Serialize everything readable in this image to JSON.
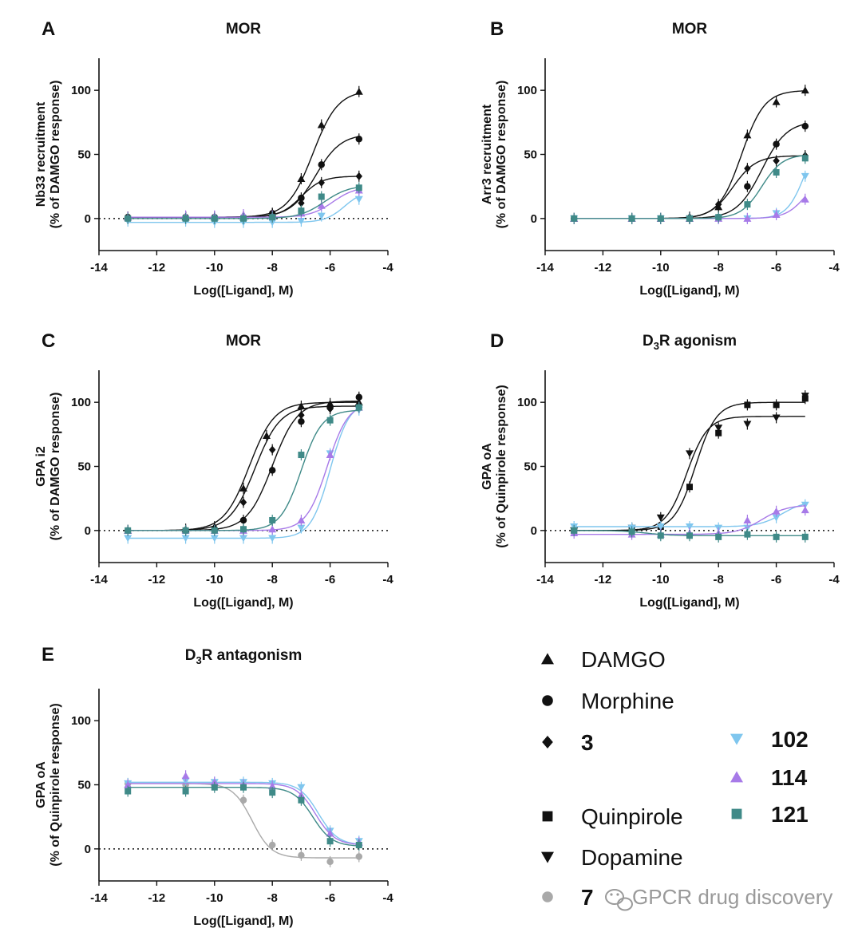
{
  "colors": {
    "black": "#111111",
    "light_blue": "#7fc6ee",
    "purple": "#a77ae8",
    "teal": "#3f8a88",
    "grey": "#a9a9a9"
  },
  "chart_data": [
    {
      "id": "A",
      "letter": "A",
      "title": "MOR",
      "type": "scatter",
      "xlabel": "Log([Ligand], M)",
      "ylabel_line1": "Nb33 recruitment",
      "ylabel_line2": "(% of DAMGO response)",
      "xlim": [
        -14,
        -4
      ],
      "ylim": [
        -25,
        125
      ],
      "xticks": [
        -14,
        -12,
        -10,
        -8,
        -6,
        -4
      ],
      "yticks": [
        0,
        50,
        100
      ],
      "zero_line": true,
      "series": [
        {
          "name": "DAMGO",
          "marker": "triangle-up",
          "color": "#111111",
          "x": [
            -13,
            -11,
            -10,
            -9,
            -8,
            -7,
            -6.3,
            -5
          ],
          "y": [
            1,
            1,
            1,
            1,
            4,
            31,
            73,
            99
          ],
          "fit": {
            "bottom": 1,
            "top": 100,
            "ec50": -6.6,
            "hill": 1
          }
        },
        {
          "name": "Morphine",
          "marker": "circle",
          "color": "#111111",
          "x": [
            -13,
            -11,
            -10,
            -9,
            -8,
            -7,
            -6.3,
            -5
          ],
          "y": [
            1,
            1,
            1,
            1,
            4,
            16,
            42,
            62
          ],
          "fit": {
            "bottom": 1,
            "top": 66,
            "ec50": -6.5,
            "hill": 1
          }
        },
        {
          "name": "3",
          "marker": "diamond",
          "color": "#111111",
          "x": [
            -13,
            -11,
            -10,
            -9,
            -8,
            -7,
            -6.3,
            -5
          ],
          "y": [
            1,
            1,
            1,
            1,
            3,
            12,
            28,
            33
          ],
          "fit": {
            "bottom": 1,
            "top": 33,
            "ec50": -7.0,
            "hill": 1.2
          }
        },
        {
          "name": "102",
          "marker": "triangle-down",
          "color": "#7fc6ee",
          "x": [
            -13,
            -11,
            -10,
            -9,
            -8,
            -7,
            -6.3,
            -5
          ],
          "y": [
            -2,
            -2,
            -3,
            -3,
            -3,
            -2,
            2,
            15
          ],
          "fit": {
            "bottom": -3,
            "top": 22,
            "ec50": -5.5,
            "hill": 1.3
          }
        },
        {
          "name": "114",
          "marker": "triangle-up",
          "color": "#a77ae8",
          "x": [
            -13,
            -11,
            -10,
            -9,
            -8,
            -7,
            -6.3,
            -5
          ],
          "y": [
            1,
            2,
            2,
            3,
            2,
            4,
            10,
            22
          ],
          "fit": {
            "bottom": 1,
            "top": 25,
            "ec50": -5.9,
            "hill": 1.1
          }
        },
        {
          "name": "121",
          "marker": "square",
          "color": "#3f8a88",
          "x": [
            -13,
            -11,
            -10,
            -9,
            -8,
            -7,
            -6.3,
            -5
          ],
          "y": [
            0,
            0,
            0,
            0,
            1,
            6,
            17,
            24
          ],
          "fit": {
            "bottom": 0,
            "top": 26,
            "ec50": -6.2,
            "hill": 1.0
          }
        }
      ]
    },
    {
      "id": "B",
      "letter": "B",
      "title": "MOR",
      "type": "scatter",
      "xlabel": "Log([Ligand], M)",
      "ylabel_line1": "Arr3 recruitment",
      "ylabel_line2": "(% of DAMGO response)",
      "xlim": [
        -14,
        -4
      ],
      "ylim": [
        -25,
        125
      ],
      "xticks": [
        -14,
        -12,
        -10,
        -8,
        -6,
        -4
      ],
      "yticks": [
        0,
        50,
        100
      ],
      "zero_line": false,
      "series": [
        {
          "name": "DAMGO",
          "marker": "triangle-up",
          "color": "#111111",
          "x": [
            -13,
            -11,
            -10,
            -9,
            -8,
            -7,
            -6,
            -5
          ],
          "y": [
            0,
            0,
            0,
            0,
            9,
            65,
            91,
            100
          ],
          "fit": {
            "bottom": 0,
            "top": 100,
            "ec50": -7.2,
            "hill": 1.1
          }
        },
        {
          "name": "Morphine",
          "marker": "circle",
          "color": "#111111",
          "x": [
            -13,
            -11,
            -10,
            -9,
            -8,
            -7,
            -6,
            -5
          ],
          "y": [
            0,
            0,
            0,
            0,
            1,
            25,
            58,
            72
          ],
          "fit": {
            "bottom": 0,
            "top": 76,
            "ec50": -6.5,
            "hill": 1.0
          }
        },
        {
          "name": "3",
          "marker": "diamond",
          "color": "#111111",
          "x": [
            -13,
            -11,
            -10,
            -9,
            -8,
            -7,
            -6,
            -5
          ],
          "y": [
            0,
            0,
            0,
            1,
            11,
            39,
            45,
            49
          ],
          "fit": {
            "bottom": 0,
            "top": 49,
            "ec50": -7.5,
            "hill": 1.1
          }
        },
        {
          "name": "102",
          "marker": "triangle-down",
          "color": "#7fc6ee",
          "x": [
            -13,
            -11,
            -10,
            -9,
            -8,
            -7,
            -6,
            -5
          ],
          "y": [
            0,
            0,
            0,
            0,
            0,
            0,
            4,
            33
          ],
          "fit": {
            "bottom": 0,
            "top": 70,
            "ec50": -5.0,
            "hill": 1.4
          }
        },
        {
          "name": "114",
          "marker": "triangle-up",
          "color": "#a77ae8",
          "x": [
            -13,
            -11,
            -10,
            -9,
            -8,
            -7,
            -6,
            -5
          ],
          "y": [
            0,
            0,
            0,
            0,
            0,
            0,
            3,
            15
          ],
          "fit": {
            "bottom": 0,
            "top": 40,
            "ec50": -4.9,
            "hill": 1.2
          }
        },
        {
          "name": "121",
          "marker": "square",
          "color": "#3f8a88",
          "x": [
            -13,
            -11,
            -10,
            -9,
            -8,
            -7,
            -6,
            -5
          ],
          "y": [
            0,
            0,
            0,
            0,
            1,
            11,
            36,
            47
          ],
          "fit": {
            "bottom": 0,
            "top": 50,
            "ec50": -6.5,
            "hill": 1.2
          }
        }
      ]
    },
    {
      "id": "C",
      "letter": "C",
      "title": "MOR",
      "type": "scatter",
      "xlabel": "Log([Ligand], M)",
      "ylabel_line1": "GPA i2",
      "ylabel_line2": "(% of DAMGO response)",
      "xlim": [
        -14,
        -4
      ],
      "ylim": [
        -25,
        125
      ],
      "xticks": [
        -14,
        -12,
        -10,
        -8,
        -6,
        -4
      ],
      "yticks": [
        0,
        50,
        100
      ],
      "zero_line": true,
      "series": [
        {
          "name": "DAMGO",
          "marker": "triangle-up",
          "color": "#111111",
          "x": [
            -13,
            -11,
            -10,
            -9,
            -8.2,
            -7,
            -6,
            -5
          ],
          "y": [
            0,
            1,
            3,
            33,
            74,
            97,
            99,
            100
          ],
          "fit": {
            "bottom": 0,
            "top": 100,
            "ec50": -8.8,
            "hill": 1.0
          }
        },
        {
          "name": "Morphine",
          "marker": "circle",
          "color": "#111111",
          "x": [
            -13,
            -11,
            -10,
            -9,
            -8,
            -7,
            -6,
            -5
          ],
          "y": [
            0,
            0,
            0,
            8,
            47,
            85,
            96,
            104
          ],
          "fit": {
            "bottom": 0,
            "top": 101,
            "ec50": -8.0,
            "hill": 1.0
          }
        },
        {
          "name": "3",
          "marker": "diamond",
          "color": "#111111",
          "x": [
            -13,
            -11,
            -10,
            -9,
            -8,
            -7,
            -6,
            -5
          ],
          "y": [
            0,
            0,
            2,
            22,
            63,
            90,
            95,
            98
          ],
          "fit": {
            "bottom": 0,
            "top": 97,
            "ec50": -8.6,
            "hill": 1.0
          }
        },
        {
          "name": "102",
          "marker": "triangle-down",
          "color": "#7fc6ee",
          "x": [
            -13,
            -11,
            -10,
            -9,
            -8,
            -7,
            -6,
            -5
          ],
          "y": [
            -6,
            -6,
            -6,
            -6,
            -6,
            2,
            60,
            94
          ],
          "fit": {
            "bottom": -6,
            "top": 101,
            "ec50": -6.0,
            "hill": 1.3
          }
        },
        {
          "name": "114",
          "marker": "triangle-up",
          "color": "#a77ae8",
          "x": [
            -13,
            -11,
            -10,
            -9,
            -8,
            -7,
            -6,
            -5
          ],
          "y": [
            0,
            0,
            0,
            0,
            1,
            8,
            59,
            96
          ],
          "fit": {
            "bottom": 0,
            "top": 100,
            "ec50": -6.1,
            "hill": 1.2
          }
        },
        {
          "name": "121",
          "marker": "square",
          "color": "#3f8a88",
          "x": [
            -13,
            -11,
            -10,
            -9,
            -8,
            -7,
            -6,
            -5
          ],
          "y": [
            0,
            0,
            0,
            1,
            8,
            59,
            86,
            96
          ],
          "fit": {
            "bottom": 0,
            "top": 94,
            "ec50": -7.0,
            "hill": 1.2
          }
        }
      ]
    },
    {
      "id": "D",
      "letter": "D",
      "title": "D",
      "title_sub": "3",
      "title_rest": "R agonism",
      "type": "scatter",
      "xlabel": "Log([Ligand], M)",
      "ylabel_line1": "GPA oA",
      "ylabel_line2": "(% of Quinpirole response)",
      "xlim": [
        -14,
        -4
      ],
      "ylim": [
        -25,
        125
      ],
      "xticks": [
        -14,
        -12,
        -10,
        -8,
        -6,
        -4
      ],
      "yticks": [
        0,
        50,
        100
      ],
      "zero_line": true,
      "series": [
        {
          "name": "Quinpirole",
          "marker": "square",
          "color": "#111111",
          "x": [
            -13,
            -11,
            -10,
            -9,
            -8,
            -7,
            -6,
            -5
          ],
          "y": [
            0,
            1,
            3,
            34,
            76,
            98,
            98,
            103
          ],
          "fit": {
            "bottom": 0,
            "top": 100,
            "ec50": -8.8,
            "hill": 1.2
          }
        },
        {
          "name": "Dopamine",
          "marker": "triangle-down",
          "color": "#111111",
          "x": [
            -13,
            -11,
            -10,
            -9,
            -8,
            -7,
            -6,
            -5
          ],
          "y": [
            0,
            2,
            10,
            60,
            80,
            83,
            88,
            105
          ],
          "fit": {
            "bottom": 0,
            "top": 89,
            "ec50": -9.1,
            "hill": 1.2
          }
        },
        {
          "name": "102",
          "marker": "triangle-down",
          "color": "#7fc6ee",
          "x": [
            -13,
            -11,
            -10,
            -9,
            -8,
            -7,
            -6,
            -5
          ],
          "y": [
            3,
            2,
            3,
            3,
            2,
            2,
            10,
            20
          ],
          "fit": {
            "bottom": 3,
            "top": 23,
            "ec50": -5.8,
            "hill": 1.1
          }
        },
        {
          "name": "114",
          "marker": "triangle-up",
          "color": "#a77ae8",
          "x": [
            -13,
            -11,
            -10,
            -9,
            -8,
            -7,
            -6,
            -5
          ],
          "y": [
            -2,
            -3,
            -3,
            -2,
            -2,
            8,
            15,
            16
          ],
          "fit": {
            "bottom": -3,
            "top": 20,
            "ec50": -6.5,
            "hill": 1.0
          }
        },
        {
          "name": "121",
          "marker": "square",
          "color": "#3f8a88",
          "x": [
            -13,
            -11,
            -10,
            -9,
            -8,
            -7,
            -6,
            -5
          ],
          "y": [
            0,
            -1,
            -4,
            -4,
            -5,
            -3,
            -5,
            -5
          ],
          "fit": {
            "bottom": 0,
            "top": -4,
            "ec50": -10.5,
            "hill": 1.0
          }
        }
      ]
    },
    {
      "id": "E",
      "letter": "E",
      "title": "D",
      "title_sub": "3",
      "title_rest": "R antagonism",
      "type": "scatter",
      "xlabel": "Log([Ligand], M)",
      "ylabel_line1": "GPA oA",
      "ylabel_line2": "(% of Quinpirole response)",
      "xlim": [
        -14,
        -4
      ],
      "ylim": [
        -25,
        125
      ],
      "xticks": [
        -14,
        -12,
        -10,
        -8,
        -6,
        -4
      ],
      "yticks": [
        0,
        50,
        100
      ],
      "zero_line": true,
      "series": [
        {
          "name": "7",
          "marker": "circle",
          "color": "#a9a9a9",
          "x": [
            -13,
            -11,
            -10,
            -9,
            -8,
            -7,
            -6,
            -5
          ],
          "y": [
            51,
            50,
            50,
            38,
            3,
            -5,
            -10,
            -6
          ],
          "fit": {
            "bottom": -7,
            "top": 51,
            "ec50": -8.7,
            "hill": -1.3
          }
        },
        {
          "name": "102",
          "marker": "triangle-down",
          "color": "#7fc6ee",
          "x": [
            -13,
            -11,
            -10,
            -9,
            -8,
            -7,
            -6,
            -5
          ],
          "y": [
            51,
            53,
            52,
            52,
            51,
            48,
            14,
            6
          ],
          "fit": {
            "bottom": 3,
            "top": 52,
            "ec50": -6.4,
            "hill": -1.3
          }
        },
        {
          "name": "114",
          "marker": "triangle-up",
          "color": "#a77ae8",
          "x": [
            -13,
            -11,
            -10,
            -9,
            -8,
            -7,
            -6,
            -5
          ],
          "y": [
            50,
            57,
            52,
            50,
            49,
            42,
            12,
            5
          ],
          "fit": {
            "bottom": 3,
            "top": 51,
            "ec50": -6.5,
            "hill": -1.3
          }
        },
        {
          "name": "121",
          "marker": "square",
          "color": "#3f8a88",
          "x": [
            -13,
            -11,
            -10,
            -9,
            -8,
            -7,
            -6,
            -5
          ],
          "y": [
            45,
            45,
            48,
            48,
            44,
            38,
            6,
            3
          ],
          "fit": {
            "bottom": 2,
            "top": 48,
            "ec50": -6.6,
            "hill": -1.3
          }
        }
      ]
    }
  ],
  "legend": [
    {
      "label": "DAMGO",
      "marker": "triangle-up",
      "color": "#111111",
      "bold": false
    },
    {
      "label": "Morphine",
      "marker": "circle",
      "color": "#111111",
      "bold": false
    },
    {
      "label": "3",
      "marker": "diamond",
      "color": "#111111",
      "bold": true
    },
    {
      "label": "102",
      "marker": "triangle-down",
      "color": "#7fc6ee",
      "bold": true
    },
    {
      "label": "114",
      "marker": "triangle-up",
      "color": "#a77ae8",
      "bold": true
    },
    {
      "label": "121",
      "marker": "square",
      "color": "#3f8a88",
      "bold": true
    },
    {
      "label": "Quinpirole",
      "marker": "square",
      "color": "#111111",
      "bold": false
    },
    {
      "label": "Dopamine",
      "marker": "triangle-down",
      "color": "#111111",
      "bold": false
    },
    {
      "label": "7",
      "marker": "circle",
      "color": "#a9a9a9",
      "bold": true
    }
  ],
  "watermark": {
    "text": "GPCR drug discovery",
    "icon": "wechat-icon"
  }
}
